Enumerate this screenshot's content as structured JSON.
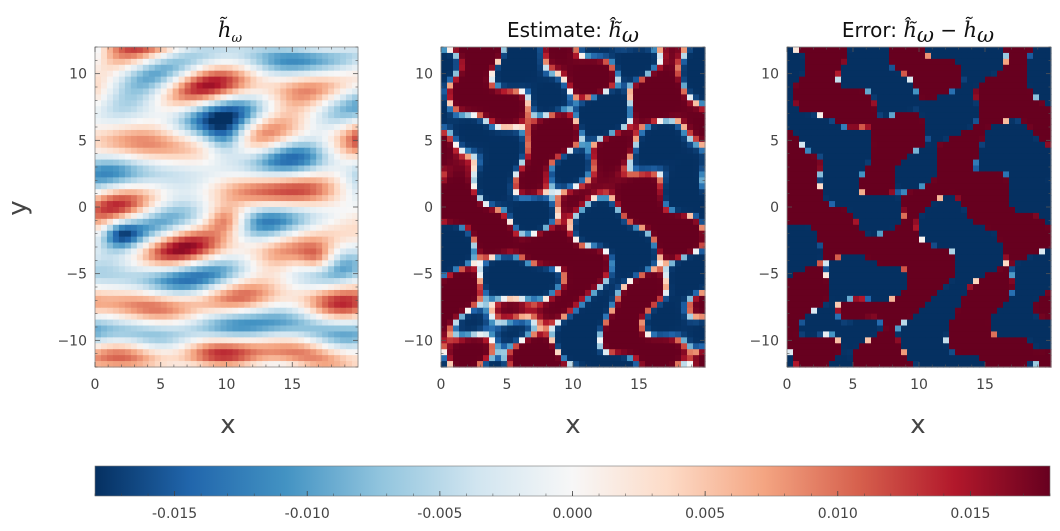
{
  "chart_data": [
    {
      "type": "heatmap",
      "title_parts": [
        "",
        "h̃",
        "ω"
      ],
      "xlabel": "x",
      "ylabel": "y",
      "xlim": [
        0,
        20
      ],
      "ylim": [
        -12,
        12
      ],
      "xticks": [
        0,
        5,
        10,
        15
      ],
      "yticks": [
        -10,
        -5,
        0,
        5,
        10
      ],
      "field": "smooth"
    },
    {
      "type": "heatmap",
      "title_parts": [
        "Estimate: ",
        "ĥ̃",
        "ω"
      ],
      "xlabel": "x",
      "ylabel": "",
      "xlim": [
        0,
        20
      ],
      "ylim": [
        -12,
        12
      ],
      "xticks": [
        0,
        5,
        10,
        15
      ],
      "yticks": [
        -10,
        -5,
        0,
        5,
        10
      ],
      "field": "saturated"
    },
    {
      "type": "heatmap",
      "title_parts": [
        "Error: ",
        "ĥ̃",
        "ω",
        " − ",
        "h̃",
        "ω"
      ],
      "xlabel": "x",
      "ylabel": "",
      "xlim": [
        0,
        20
      ],
      "ylim": [
        -12,
        12
      ],
      "xticks": [
        0,
        5,
        10,
        15
      ],
      "yticks": [
        -10,
        -5,
        0,
        5,
        10
      ],
      "field": "saturated-diff"
    }
  ],
  "colorbar": {
    "range": [
      -0.018,
      0.018
    ],
    "ticks": [
      -0.015,
      -0.01,
      -0.005,
      0.0,
      0.005,
      0.01,
      0.015
    ],
    "tick_labels": [
      "-0.015",
      "-0.010",
      "-0.005",
      "0.000",
      "0.005",
      "0.010",
      "0.015"
    ],
    "colormap": "RdBu_r",
    "colors": [
      "#053061",
      "#2166ac",
      "#4393c3",
      "#92c5de",
      "#d1e5f0",
      "#f7f7f7",
      "#fddbc7",
      "#f4a582",
      "#d6604d",
      "#b2182b",
      "#67001f"
    ]
  }
}
